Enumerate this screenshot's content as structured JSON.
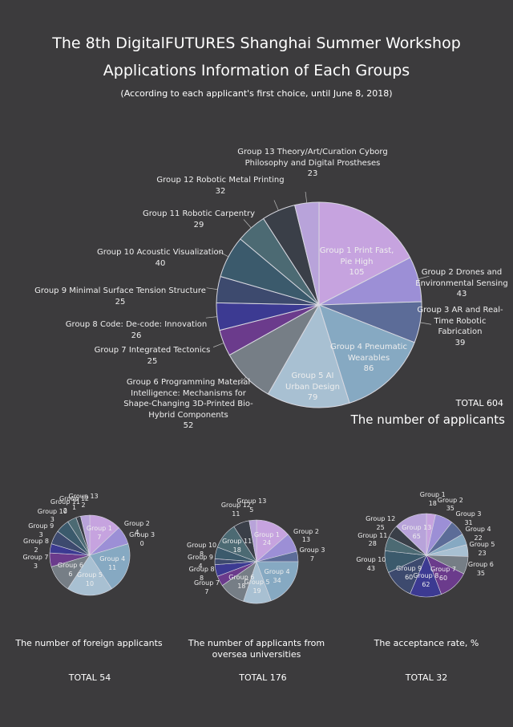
{
  "title": [
    "The 8th DigitalFUTURES Shanghai Summer Workshop",
    "Applications Information of Each Groups"
  ],
  "note": "(According to each applicant's first choice, until June 8, 2018)",
  "chart_data": [
    {
      "type": "pie",
      "title": "The number of applicants",
      "total": "TOTAL 604",
      "categories": [
        "Group 1 Print Fast, Pie High",
        "Group 2 Drones and Environmental Sensing",
        "Group 3 AR and Real-Time Robotic Fabrication",
        "Group 4 Pneumatic Wearables",
        "Group 5 AI Urban Design",
        "Group 6 Programming Material Intelligence: Mechanisms for Shape-Changing 3D-Printed Bio-Hybrid Components",
        "Group 7 Integrated Tectonics",
        "Group 8 Code: De-code: Innovation",
        "Group 9 Minimal Surface Tension Structure",
        "Group 10 Acoustic Visualization",
        "Group 11 Robotic Carpentry",
        "Group 12 Robotic Metal Printing",
        "Group 13 Theory/Art/Curation Cyborg Philosophy and Digital Prostheses"
      ],
      "values": [
        105,
        43,
        39,
        86,
        79,
        52,
        25,
        26,
        25,
        40,
        29,
        32,
        23
      ],
      "colors": [
        "#c6a3df",
        "#9c8fd6",
        "#5c6c98",
        "#86a9c2",
        "#a8c0d2",
        "#767e86",
        "#6b3b8c",
        "#3c3a92",
        "#3d4a6e",
        "#3b5a6c",
        "#4c6a73",
        "#3a3f48",
        "#b8a3da"
      ]
    },
    {
      "type": "pie",
      "title": "The number of foreign applicants",
      "total": "TOTAL 54",
      "categories": [
        "Group 1",
        "Group 2",
        "Group 3",
        "Group 4",
        "Group 5",
        "Group 6",
        "Group 7",
        "Group 8",
        "Group 9",
        "Group 10",
        "Group 11",
        "Group 12",
        "Group 13"
      ],
      "values": [
        7,
        4,
        0,
        11,
        10,
        6,
        3,
        2,
        3,
        3,
        2,
        1,
        2
      ],
      "colors": [
        "#c6a3df",
        "#9c8fd6",
        "#5c6c98",
        "#86a9c2",
        "#a8c0d2",
        "#767e86",
        "#6b3b8c",
        "#3c3a92",
        "#3d4a6e",
        "#3b5a6c",
        "#4c6a73",
        "#3a3f48",
        "#b8a3da"
      ]
    },
    {
      "type": "pie",
      "title": "The number of applicants from oversea universities",
      "total": "TOTAL 176",
      "categories": [
        "Group 1",
        "Group 2",
        "Group 3",
        "Group 4",
        "Group 5",
        "Group 6",
        "Group 7",
        "Group 8",
        "Group 9",
        "Group 10",
        "Group 11",
        "Group 12",
        "Group 13"
      ],
      "values": [
        24,
        13,
        7,
        34,
        19,
        18,
        7,
        8,
        4,
        8,
        18,
        11,
        5
      ],
      "colors": [
        "#c6a3df",
        "#9c8fd6",
        "#5c6c98",
        "#86a9c2",
        "#a8c0d2",
        "#767e86",
        "#6b3b8c",
        "#3c3a92",
        "#3d4a6e",
        "#3b5a6c",
        "#4c6a73",
        "#3a3f48",
        "#b8a3da"
      ]
    },
    {
      "type": "pie",
      "title": "The acceptance rate, %",
      "total": "TOTAL 32",
      "categories": [
        "Group 1",
        "Group 2",
        "Group 3",
        "Group 4",
        "Group 5",
        "Group 6",
        "Group 7",
        "Group 8",
        "Group 9",
        "Group 10",
        "Group 11",
        "Group 12",
        "Group 13"
      ],
      "values": [
        18,
        35,
        31,
        22,
        23,
        35,
        60,
        62,
        60,
        43,
        28,
        25,
        65
      ],
      "colors": [
        "#c6a3df",
        "#9c8fd6",
        "#5c6c98",
        "#86a9c2",
        "#a8c0d2",
        "#767e86",
        "#6b3b8c",
        "#3c3a92",
        "#3d4a6e",
        "#3b5a6c",
        "#4c6a73",
        "#3a3f48",
        "#b8a3da"
      ]
    }
  ]
}
